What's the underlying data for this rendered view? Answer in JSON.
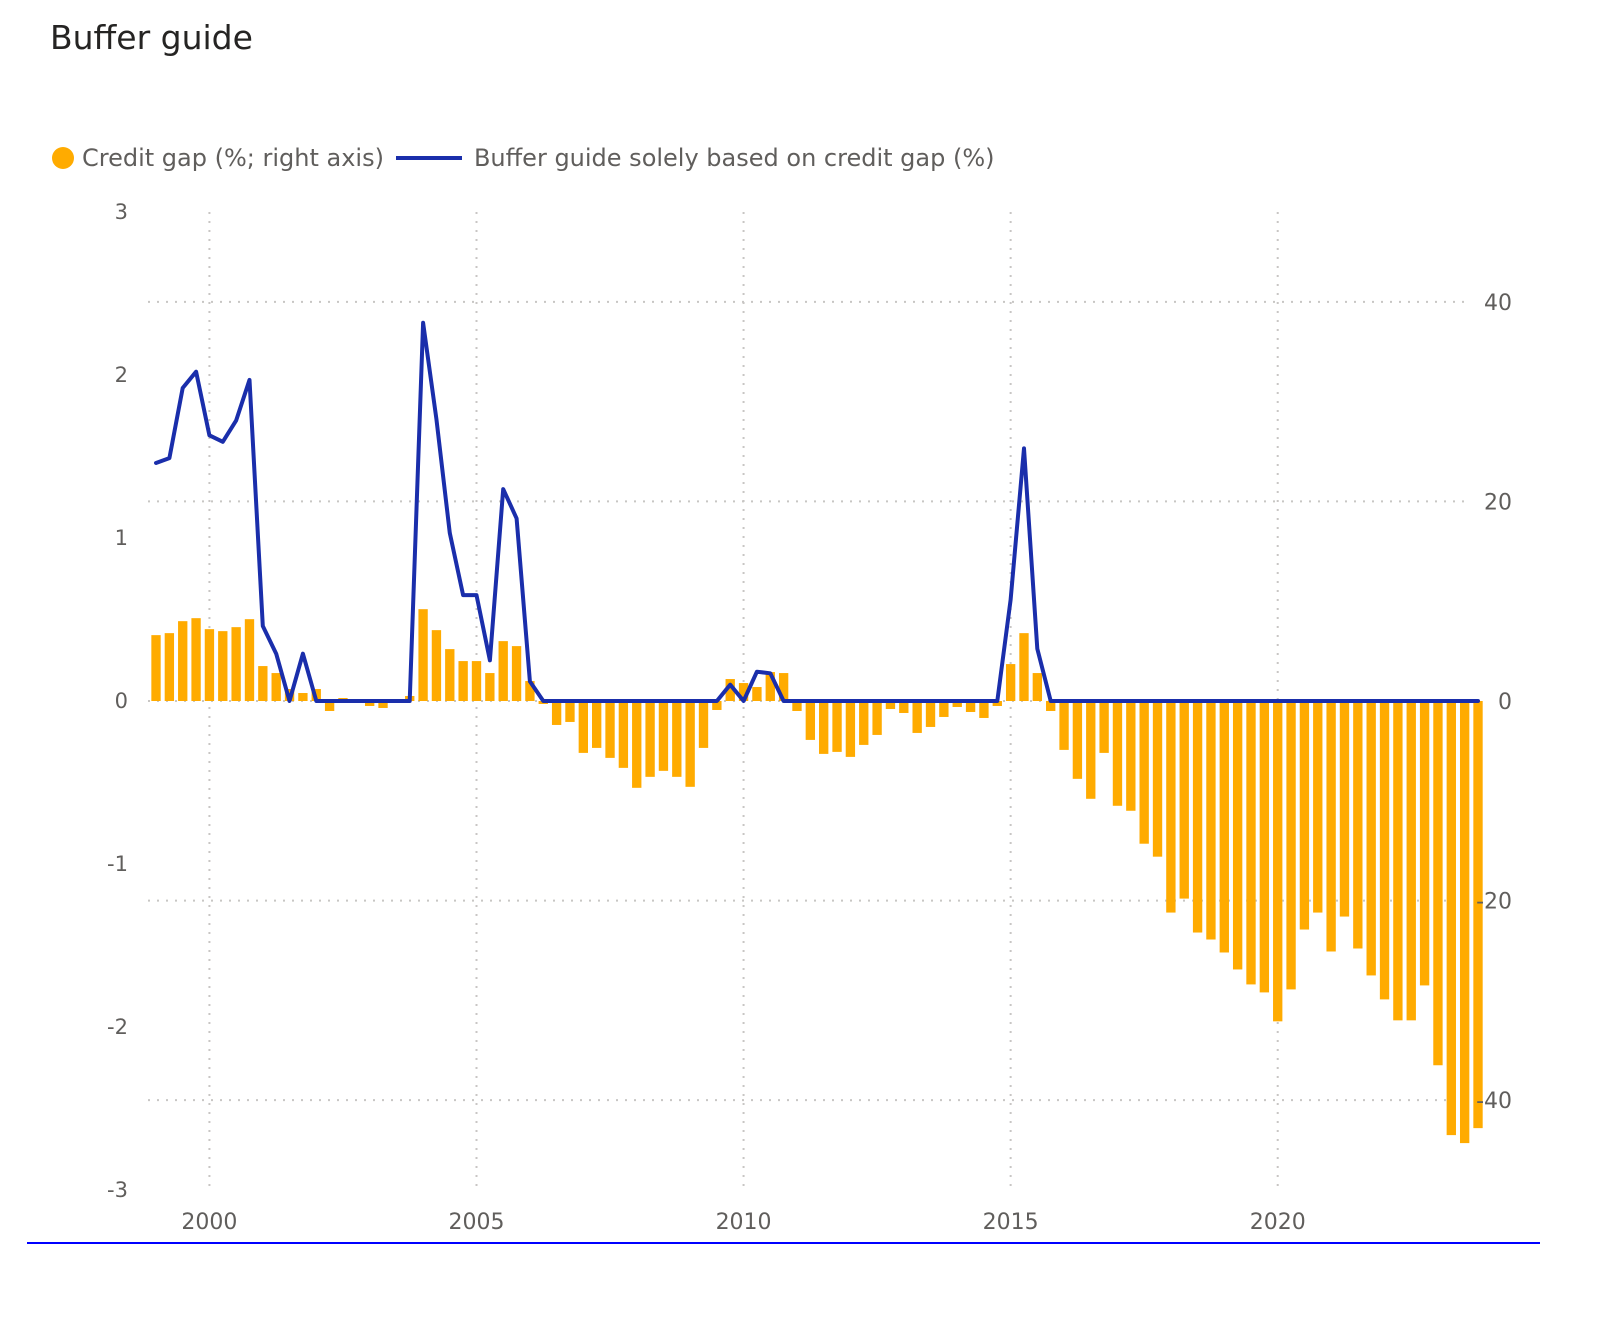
{
  "title": "Buffer guide",
  "legend": {
    "bar_label": "Credit gap (%; right axis)",
    "line_label": "Buffer guide solely based on credit gap (%)"
  },
  "colors": {
    "bar": "#FFAB00",
    "line": "#1A2EAB",
    "rule": "#0000FF",
    "grid": "#C8C6C4",
    "tick_text": "#605E5C"
  },
  "chart_data": {
    "type": "bar+line",
    "title": "Buffer guide",
    "x_unit": "year (quarterly)",
    "x_start": 1999.0,
    "x_step": 0.25,
    "xlim": [
      1998.85,
      2023.6
    ],
    "x_ticks": [
      2000,
      2005,
      2010,
      2015,
      2020
    ],
    "left_axis": {
      "ylim": [
        -3,
        3
      ],
      "ticks": [
        -3,
        -2,
        -1,
        0,
        1,
        2,
        3
      ]
    },
    "right_axis": {
      "ylim": [
        -49,
        49
      ],
      "ticks": [
        -40,
        -20,
        0,
        20,
        40
      ]
    },
    "grid": true,
    "legend_position": "top-left",
    "series": [
      {
        "name": "Credit gap (%; right axis)",
        "kind": "bar",
        "axis": "right",
        "values": [
          6.6,
          6.8,
          8.0,
          8.3,
          7.2,
          7.0,
          7.4,
          8.2,
          3.5,
          2.8,
          1.2,
          0.8,
          1.2,
          -1.0,
          0.3,
          0.2,
          -0.5,
          -0.7,
          0.0,
          0.5,
          9.2,
          7.1,
          5.2,
          4.0,
          4.0,
          2.8,
          6.0,
          5.5,
          2.0,
          -0.3,
          -2.4,
          -2.1,
          -5.2,
          -4.7,
          -5.7,
          -6.7,
          -8.7,
          -7.6,
          -7.0,
          -7.6,
          -8.6,
          -4.7,
          -0.9,
          2.2,
          1.8,
          1.4,
          2.9,
          2.8,
          -1.0,
          -3.9,
          -5.3,
          -5.1,
          -5.6,
          -4.4,
          -3.4,
          -0.8,
          -1.2,
          -3.2,
          -2.6,
          -1.6,
          -0.6,
          -1.1,
          -1.7,
          -0.5,
          3.7,
          6.8,
          2.8,
          -1.0,
          -4.9,
          -7.8,
          -9.8,
          -5.2,
          -10.5,
          -11.0,
          -14.3,
          -15.6,
          -21.2,
          -19.8,
          -23.2,
          -23.9,
          -25.2,
          -26.9,
          -28.4,
          -29.2,
          -32.1,
          -28.9,
          -22.9,
          -21.2,
          -25.1,
          -21.6,
          -24.8,
          -27.5,
          -29.9,
          -32.0,
          -32.0,
          -28.5,
          -36.5,
          -43.5,
          -44.3,
          -42.8
        ],
        "color": "#FFAB00"
      },
      {
        "name": "Buffer guide solely based on credit gap (%)",
        "kind": "line",
        "axis": "left",
        "values": [
          1.46,
          1.49,
          1.92,
          2.02,
          1.63,
          1.59,
          1.72,
          1.97,
          0.46,
          0.29,
          0.0,
          0.29,
          0.0,
          0.0,
          0.0,
          0.0,
          0.0,
          0.0,
          0.0,
          0.0,
          2.32,
          1.73,
          1.03,
          0.65,
          0.65,
          0.25,
          1.3,
          1.12,
          0.12,
          0.0,
          0.0,
          0.0,
          0.0,
          0.0,
          0.0,
          0.0,
          0.0,
          0.0,
          0.0,
          0.0,
          0.0,
          0.0,
          0.0,
          0.1,
          0.0,
          0.18,
          0.17,
          0.0,
          0.0,
          0.0,
          0.0,
          0.0,
          0.0,
          0.0,
          0.0,
          0.0,
          0.0,
          0.0,
          0.0,
          0.0,
          0.0,
          0.0,
          0.0,
          0.0,
          0.62,
          1.55,
          0.32,
          0.0,
          0.0,
          0.0,
          0.0,
          0.0,
          0.0,
          0.0,
          0.0,
          0.0,
          0.0,
          0.0,
          0.0,
          0.0,
          0.0,
          0.0,
          0.0,
          0.0,
          0.0,
          0.0,
          0.0,
          0.0,
          0.0,
          0.0,
          0.0,
          0.0,
          0.0,
          0.0,
          0.0,
          0.0,
          0.0,
          0.0,
          0.0,
          0.0
        ],
        "color": "#1A2EAB"
      }
    ]
  }
}
